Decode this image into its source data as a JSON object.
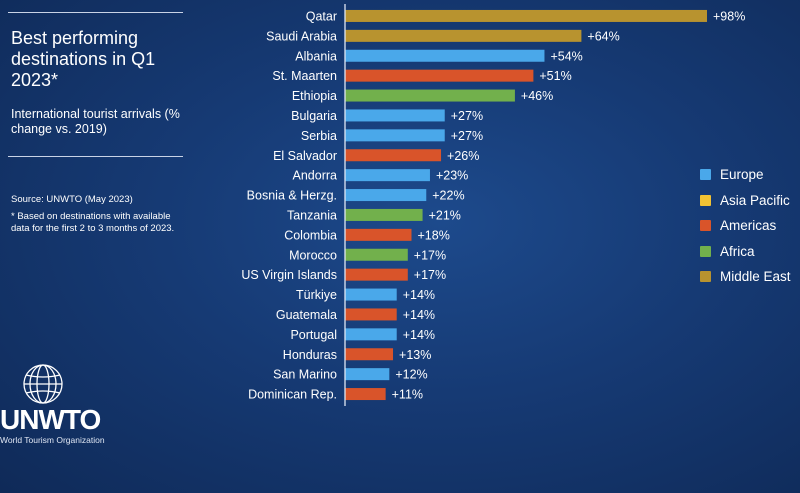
{
  "title": "Best performing destinations in Q1 2023*",
  "subtitle": "International tourist arrivals (% change vs. 2019)",
  "source": "Source: UNWTO (May 2023)",
  "footnote": "* Based on destinations with available data for the first 2 to 3 months of 2023.",
  "logo": {
    "text": "UNWTO",
    "subtext": "World Tourism Organization"
  },
  "colors": {
    "Europe": "#4aa8ea",
    "Asia Pacific": "#f2c233",
    "Americas": "#d9542a",
    "Africa": "#72b04c",
    "Middle East": "#b8932f",
    "axis": "#dfe6f3",
    "text": "#ffffff"
  },
  "legend": [
    {
      "label": "Europe",
      "color": "#4aa8ea"
    },
    {
      "label": "Asia Pacific",
      "color": "#f2c233"
    },
    {
      "label": "Americas",
      "color": "#d9542a"
    },
    {
      "label": "Africa",
      "color": "#72b04c"
    },
    {
      "label": "Middle East",
      "color": "#b8932f"
    }
  ],
  "chart_data": {
    "type": "bar",
    "orientation": "horizontal",
    "categories": [
      "Qatar",
      "Saudi Arabia",
      "Albania",
      "St. Maarten",
      "Ethiopia",
      "Bulgaria",
      "Serbia",
      "El Salvador",
      "Andorra",
      "Bosnia & Herzg.",
      "Tanzania",
      "Colombia",
      "Morocco",
      "US Virgin Islands",
      "Türkiye",
      "Guatemala",
      "Portugal",
      "Honduras",
      "San Marino",
      "Dominican Rep."
    ],
    "values": [
      98,
      64,
      54,
      51,
      46,
      27,
      27,
      26,
      23,
      22,
      21,
      18,
      17,
      17,
      14,
      14,
      14,
      13,
      12,
      11
    ],
    "value_labels": [
      "+98%",
      "+64%",
      "+54%",
      "+51%",
      "+46%",
      "+27%",
      "+27%",
      "+26%",
      "+23%",
      "+22%",
      "+21%",
      "+18%",
      "+17%",
      "+17%",
      "+14%",
      "+14%",
      "+14%",
      "+13%",
      "+12%",
      "+11%"
    ],
    "regions": [
      "Middle East",
      "Middle East",
      "Europe",
      "Americas",
      "Africa",
      "Europe",
      "Europe",
      "Americas",
      "Europe",
      "Europe",
      "Africa",
      "Americas",
      "Africa",
      "Americas",
      "Europe",
      "Americas",
      "Europe",
      "Americas",
      "Europe",
      "Americas"
    ],
    "legend_position": "right",
    "grid": false,
    "xlim": [
      0,
      98
    ]
  }
}
